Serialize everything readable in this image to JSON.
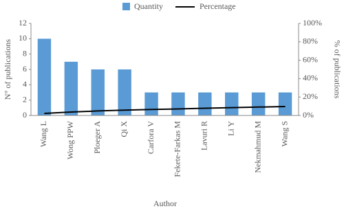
{
  "chart_data": {
    "type": "bar",
    "x_label": "Author",
    "y_label": "N° of publications",
    "y2_label": "% of publications",
    "categories": [
      "Wang L",
      "Wong PPW",
      "Ploeger A",
      "Qi X",
      "Carfora V",
      "Fekete-Farkas M",
      "Lavuri R",
      "Li Y",
      "Nekmahmud M",
      "Wang S"
    ],
    "series": [
      {
        "name": "Quantity",
        "type": "bar",
        "color": "#5b9bd5",
        "values": [
          10,
          7,
          6,
          6,
          3,
          3,
          3,
          3,
          3,
          3
        ]
      },
      {
        "name": "Percentage",
        "type": "line",
        "axis": "y2",
        "color": "#000000",
        "values": [
          2.2,
          3.7,
          4.9,
          5.8,
          6.5,
          7.1,
          7.8,
          8.5,
          9.1,
          9.7
        ]
      }
    ],
    "ylim": [
      0,
      12
    ],
    "yticks": [
      0,
      2,
      4,
      6,
      8,
      10,
      12
    ],
    "y2lim": [
      0,
      100
    ],
    "y2ticks": [
      {
        "value": 0,
        "label": "0%"
      },
      {
        "value": 20,
        "label": "20%"
      },
      {
        "value": 40,
        "label": "40%"
      },
      {
        "value": 60,
        "label": "60%"
      },
      {
        "value": 80,
        "label": "80%"
      },
      {
        "value": 100,
        "label": "100%"
      }
    ],
    "legend": "top"
  }
}
